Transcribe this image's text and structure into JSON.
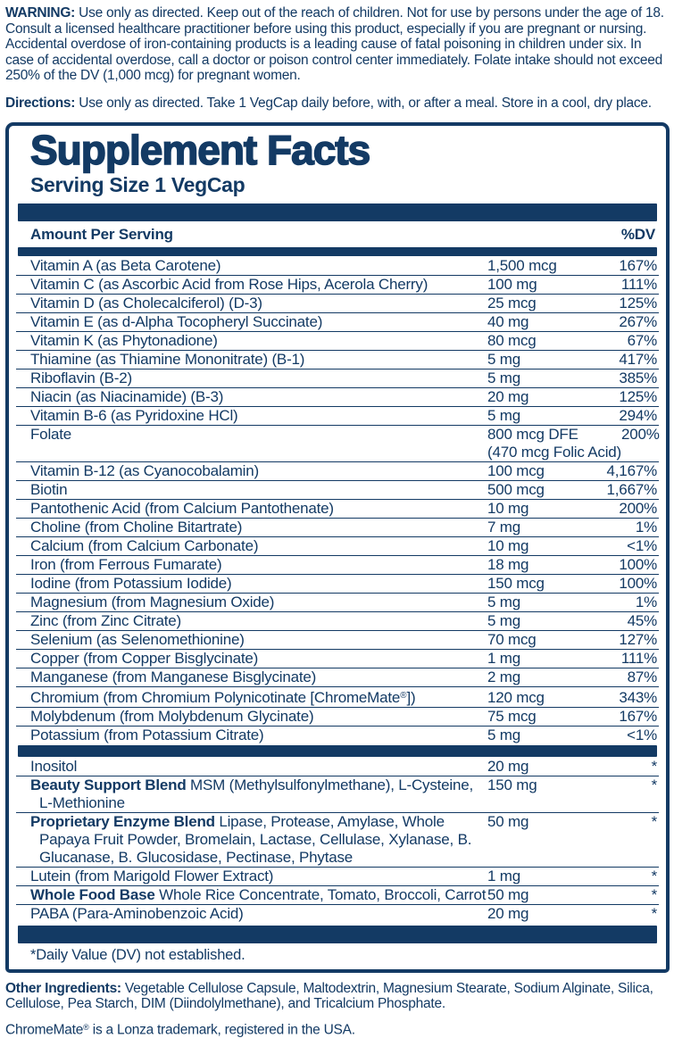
{
  "colors": {
    "navy": "#133a64",
    "background": "#ffffff"
  },
  "warning": {
    "label": "WARNING:",
    "text": " Use only as directed.  Keep out of the reach of children. Not for use by persons under the age of 18.  Consult a licensed healthcare practitioner before using this product, especially if you are pregnant or nursing.  Accidental overdose of iron-containing products is a leading cause of fatal poisoning in children under six.  In case of accidental overdose, call a doctor or poison control center immediately. Folate intake should not exceed 250% of the DV (1,000 mcg) for pregnant women."
  },
  "directions": {
    "label": "Directions:",
    "text": " Use only as directed. Take 1 VegCap daily before, with, or after a meal. Store in a cool, dry place."
  },
  "supplement_facts": {
    "title": "Supplement Facts",
    "serving_size": "Serving Size 1 VegCap",
    "columns": {
      "amount": "Amount Per Serving",
      "dv": "%DV"
    },
    "sections": [
      {
        "rows": [
          {
            "name": "Vitamin A (as Beta Carotene)",
            "amount": "1,500 mcg",
            "dv": "167%"
          },
          {
            "name": "Vitamin C (as Ascorbic Acid from Rose Hips, Acerola Cherry)",
            "amount": "100 mg",
            "dv": "111%"
          },
          {
            "name": "Vitamin D (as Cholecalciferol) (D-3)",
            "amount": "25 mcg",
            "dv": "125%"
          },
          {
            "name": "Vitamin E (as d-Alpha Tocopheryl Succinate)",
            "amount": "40 mg",
            "dv": "267%"
          },
          {
            "name": "Vitamin K (as Phytonadione)",
            "amount": "80 mcg",
            "dv": "67%"
          },
          {
            "name": "Thiamine (as Thiamine Mononitrate) (B-1)",
            "amount": "5 mg",
            "dv": "417%"
          },
          {
            "name": "Riboflavin (B-2)",
            "amount": "5 mg",
            "dv": "385%"
          },
          {
            "name": "Niacin (as Niacinamide) (B-3)",
            "amount": "20 mg",
            "dv": "125%"
          },
          {
            "name": "Vitamin B-6 (as Pyridoxine HCl)",
            "amount": "5 mg",
            "dv": "294%"
          },
          {
            "name": "Folate",
            "amount": "800 mcg DFE",
            "amount2": "(470 mcg Folic Acid)",
            "dv": "200%"
          },
          {
            "name": "Vitamin B-12 (as Cyanocobalamin)",
            "amount": "100 mcg",
            "dv": "4,167%"
          },
          {
            "name": "Biotin",
            "amount": "500 mcg",
            "dv": "1,667%"
          },
          {
            "name": "Pantothenic Acid (from Calcium Pantothenate)",
            "amount": "10 mg",
            "dv": "200%"
          },
          {
            "name": "Choline (from Choline Bitartrate)",
            "amount": "7 mg",
            "dv": "1%"
          },
          {
            "name": "Calcium (from Calcium Carbonate)",
            "amount": "10 mg",
            "dv": "<1%"
          },
          {
            "name": "Iron (from Ferrous Fumarate)",
            "amount": "18 mg",
            "dv": "100%"
          },
          {
            "name": "Iodine (from Potassium Iodide)",
            "amount": "150 mcg",
            "dv": "100%"
          },
          {
            "name": "Magnesium (from Magnesium Oxide)",
            "amount": "5 mg",
            "dv": "1%"
          },
          {
            "name": "Zinc (from Zinc Citrate)",
            "amount": "5 mg",
            "dv": "45%"
          },
          {
            "name": "Selenium (as Selenomethionine)",
            "amount": "70 mcg",
            "dv": "127%"
          },
          {
            "name": "Copper (from Copper Bisglycinate)",
            "amount": "1 mg",
            "dv": "111%"
          },
          {
            "name": "Manganese (from Manganese Bisglycinate)",
            "amount": "2 mg",
            "dv": "87%"
          },
          {
            "name": "Chromium (from Chromium Polynicotinate [ChromeMate®])",
            "amount": "120 mcg",
            "dv": "343%"
          },
          {
            "name": "Molybdenum (from Molybdenum Glycinate)",
            "amount": "75 mcg",
            "dv": "167%"
          },
          {
            "name": "Potassium (from Potassium Citrate)",
            "amount": "5 mg",
            "dv": "<1%"
          }
        ]
      },
      {
        "rows": [
          {
            "name": "Inositol",
            "amount": "20 mg",
            "dv": "*"
          },
          {
            "lead": "Beauty Support Blend",
            "name": " MSM (Methylsulfonylmethane), L-Cysteine, L-Methionine",
            "amount": "150 mg",
            "dv": "*"
          },
          {
            "lead": "Proprietary Enzyme Blend",
            "name": " Lipase, Protease, Amylase, Whole Papaya Fruit Powder, Bromelain, Lactase, Cellulase, Xylanase, B. Glucanase, B. Glucosidase, Pectinase, Phytase",
            "amount": "50 mg",
            "dv": "*"
          },
          {
            "name": "Lutein (from Marigold Flower Extract)",
            "amount": "1 mg",
            "dv": "*"
          },
          {
            "lead": "Whole Food Base",
            "name": " Whole Rice Concentrate, Tomato, Broccoli, Carrot",
            "amount": "50 mg",
            "dv": "*"
          },
          {
            "name": "PABA (Para-Aminobenzoic Acid)",
            "amount": "20 mg",
            "dv": "*"
          }
        ]
      }
    ],
    "footnote": "*Daily Value (DV) not established."
  },
  "other_ingredients": {
    "label": "Other Ingredients:",
    "text": " Vegetable Cellulose Capsule, Maltodextrin, Magnesium Stearate, Sodium Alginate, Silica, Cellulose, Pea Starch, DIM (Diindolylmethane), and Tricalcium Phosphate."
  },
  "trademark": {
    "text": "ChromeMate® is a Lonza trademark, registered in the USA."
  }
}
